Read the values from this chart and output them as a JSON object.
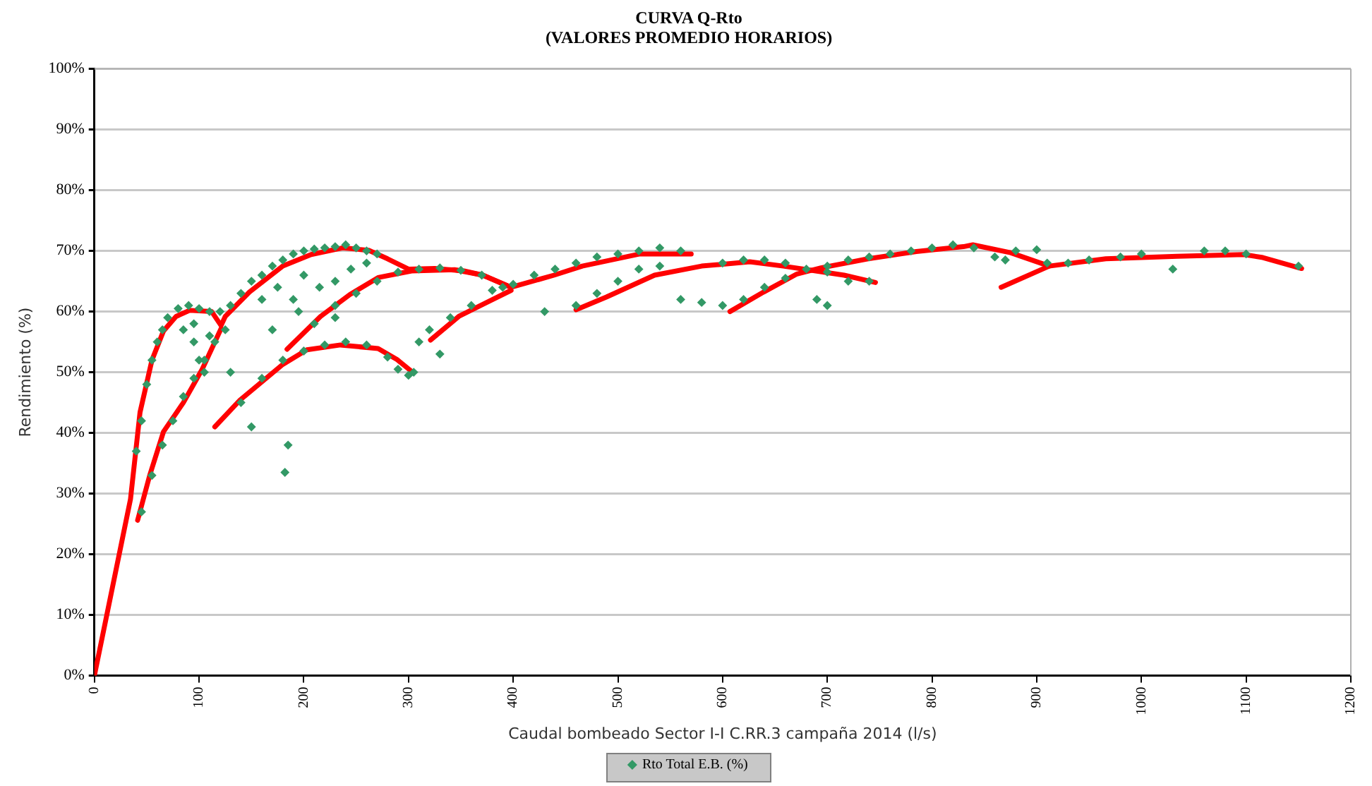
{
  "chart_data": {
    "type": "scatter",
    "title": "CURVA Q-Rto",
    "subtitle": "(VALORES PROMEDIO HORARIOS)",
    "xlabel": "Caudal bombeado Sector I-I C.RR.3 campaña 2014 (l/s)",
    "ylabel": "Rendimiento (%)",
    "xlim": [
      0,
      1200
    ],
    "xticks": [
      0,
      100,
      200,
      300,
      400,
      500,
      600,
      700,
      800,
      900,
      1000,
      1100,
      1200
    ],
    "ylim": [
      0,
      100
    ],
    "yticks": [
      {
        "value": 0,
        "label": "0%"
      },
      {
        "value": 10,
        "label": "10%"
      },
      {
        "value": 20,
        "label": "20%"
      },
      {
        "value": 30,
        "label": "30%"
      },
      {
        "value": 40,
        "label": "40%"
      },
      {
        "value": 50,
        "label": "50%"
      },
      {
        "value": 60,
        "label": "60%"
      },
      {
        "value": 70,
        "label": "70%"
      },
      {
        "value": 80,
        "label": "80%"
      },
      {
        "value": 90,
        "label": "90%"
      },
      {
        "value": 100,
        "label": "100%"
      }
    ],
    "grid": "y",
    "legend": "bottom",
    "marker": "diamond",
    "series": [
      {
        "name": "Rto Total E.B. (%)",
        "color": "#339966",
        "x": [
          40,
          45,
          50,
          55,
          60,
          65,
          70,
          80,
          90,
          100,
          110,
          85,
          95,
          100,
          105,
          110,
          95,
          45,
          55,
          65,
          75,
          85,
          95,
          105,
          115,
          120,
          125,
          130,
          140,
          150,
          160,
          170,
          180,
          190,
          200,
          210,
          220,
          230,
          240,
          250,
          260,
          270,
          160,
          175,
          190,
          200,
          215,
          230,
          245,
          260,
          185,
          182,
          150,
          130,
          170,
          195,
          210,
          230,
          250,
          270,
          290,
          310,
          330,
          350,
          370,
          390,
          140,
          160,
          180,
          200,
          220,
          240,
          260,
          280,
          290,
          300,
          305,
          230,
          310,
          320,
          330,
          340,
          360,
          380,
          400,
          420,
          440,
          460,
          480,
          500,
          520,
          540,
          560,
          430,
          460,
          480,
          500,
          520,
          540,
          560,
          580,
          600,
          620,
          600,
          620,
          640,
          660,
          680,
          700,
          720,
          740,
          640,
          660,
          700,
          720,
          740,
          760,
          780,
          800,
          820,
          840,
          860,
          880,
          900,
          870,
          910,
          930,
          950,
          980,
          1000,
          1030,
          1060,
          1080,
          1100,
          1150,
          690,
          700
        ],
        "values": [
          37,
          42,
          48,
          52,
          55,
          57,
          59,
          60.5,
          61,
          60.5,
          60,
          57,
          55,
          52,
          50,
          56,
          58,
          27,
          33,
          38,
          42,
          46,
          49,
          52,
          55,
          60,
          57,
          61,
          63,
          65,
          66,
          67.5,
          68.5,
          69.5,
          70,
          70.3,
          70.5,
          70.7,
          71,
          70.5,
          70,
          69.5,
          62,
          64,
          62,
          66,
          64,
          65,
          67,
          68,
          38,
          33.5,
          41,
          50,
          57,
          60,
          58,
          61,
          63,
          65,
          66.5,
          67,
          67.2,
          66.8,
          66,
          64,
          45,
          49,
          52,
          53.5,
          54.5,
          55,
          54.5,
          52.5,
          50.5,
          49.5,
          50,
          59,
          55,
          57,
          53,
          59,
          61,
          63.5,
          64.5,
          66,
          67,
          68,
          69,
          69.5,
          70,
          70.5,
          70,
          60,
          61,
          63,
          65,
          67,
          67.5,
          62,
          61.5,
          61,
          62,
          68,
          68.5,
          68.5,
          68,
          67,
          66.5,
          65,
          65,
          64,
          65.5,
          67.5,
          68.5,
          69,
          69.5,
          70,
          70.5,
          71,
          70.5,
          69,
          70,
          70.2,
          68.5,
          68,
          68,
          68.5,
          69,
          69.5,
          67,
          70,
          70,
          69.5,
          67.5,
          62,
          61
        ]
      },
      {
        "type": "line",
        "color": "#ff0000",
        "marker": "none",
        "x": [
          0,
          34.5,
          43.6,
          55,
          66,
          78,
          91,
          112,
          121,
          125,
          148,
          180,
          207,
          237,
          262,
          280,
          300,
          325,
          353,
          371,
          398,
          439,
          466,
          521,
          570
        ],
        "values": [
          0,
          29.1,
          43.4,
          52,
          56.8,
          59.2,
          60.2,
          60,
          57.7,
          59.2,
          63.2,
          67.5,
          69.4,
          70.5,
          70.1,
          68.7,
          67,
          67.1,
          66.7,
          66,
          64,
          66,
          67.5,
          69.5,
          69.5
        ]
      },
      {
        "type": "line",
        "color": "#ff0000",
        "marker": "none",
        "x": [
          41.3,
          53,
          66,
          85,
          103,
          121
        ],
        "values": [
          25.6,
          33.1,
          40.2,
          45,
          50.5,
          57.2
        ]
      },
      {
        "type": "line",
        "color": "#ff0000",
        "marker": "none",
        "x": [
          115,
          139,
          180,
          203,
          235,
          271,
          289,
          304
        ],
        "values": [
          41,
          45.4,
          51.3,
          53.7,
          54.5,
          53.9,
          52.1,
          50
        ]
      },
      {
        "type": "line",
        "color": "#ff0000",
        "marker": "none",
        "x": [
          184,
          216,
          244,
          271,
          303,
          344,
          371,
          398
        ],
        "values": [
          53.8,
          59.2,
          62.8,
          65.6,
          66.7,
          66.9,
          66,
          64
        ]
      },
      {
        "type": "line",
        "color": "#ff0000",
        "marker": "none",
        "x": [
          321,
          348,
          371,
          398
        ],
        "values": [
          55.3,
          59.2,
          61.2,
          63.5
        ]
      },
      {
        "type": "line",
        "color": "#ff0000",
        "marker": "none",
        "x": [
          460,
          489,
          535,
          580,
          626,
          658,
          689,
          716,
          746
        ],
        "values": [
          60.3,
          62.4,
          66,
          67.5,
          68.2,
          67.5,
          66.7,
          66,
          64.8
        ]
      },
      {
        "type": "line",
        "color": "#ff0000",
        "marker": "none",
        "x": [
          607,
          639,
          671,
          694,
          739,
          785,
          830,
          839,
          875,
          912,
          966,
          1034,
          1098,
          1116,
          1153
        ],
        "values": [
          60,
          63.2,
          66.2,
          67.2,
          68.7,
          69.9,
          70.7,
          71,
          69.7,
          67.5,
          68.7,
          69.1,
          69.4,
          68.9,
          67.1
        ]
      },
      {
        "type": "line",
        "color": "#ff0000",
        "marker": "none",
        "x": [
          866,
          912
        ],
        "values": [
          64,
          67.5
        ]
      }
    ]
  }
}
